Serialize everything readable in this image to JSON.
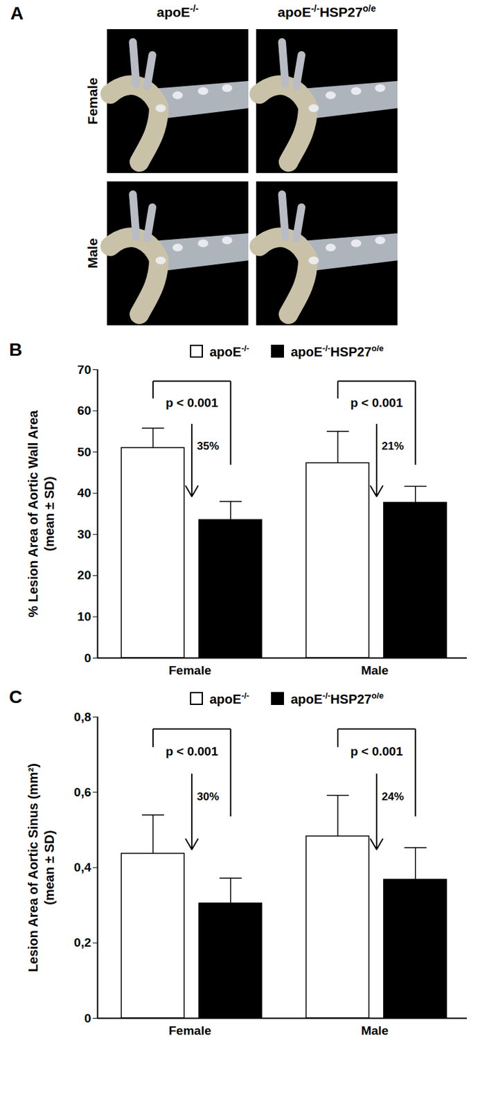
{
  "panel_a": {
    "panel": "A",
    "columns": [
      "apoE-/-",
      "apoE-/-HSP27o/e"
    ],
    "rows": [
      "Female",
      "Male"
    ]
  },
  "chart_data": [
    {
      "panel": "B",
      "type": "bar",
      "y_label": "% Lesion Area of Aortic Wall Area\n(mean ± SD)",
      "categories": [
        "Female",
        "Male"
      ],
      "series": [
        {
          "name": "apoE-/-",
          "color": "#ffffff",
          "values": [
            51.0,
            47.3
          ],
          "sd": [
            4.8,
            7.7
          ]
        },
        {
          "name": "apoE-/-HSP27o/e",
          "color": "#000000",
          "values": [
            33.5,
            37.7
          ],
          "sd": [
            4.5,
            4.0
          ]
        }
      ],
      "annotations": [
        {
          "p": "p < 0.001",
          "change": "35%"
        },
        {
          "p": "p < 0.001",
          "change": "21%"
        }
      ],
      "ylim": [
        0,
        70
      ],
      "yticks": [
        0,
        10,
        20,
        30,
        40,
        50,
        60,
        70
      ],
      "legend": "top"
    },
    {
      "panel": "C",
      "type": "bar",
      "y_label": "Lesion Area of Aortic Sinus (mm²)\n(mean ± SD)",
      "categories": [
        "Female",
        "Male"
      ],
      "series": [
        {
          "name": "apoE-/-",
          "color": "#ffffff",
          "values": [
            0.437,
            0.483
          ],
          "sd": [
            0.103,
            0.109
          ]
        },
        {
          "name": "apoE-/-HSP27o/e",
          "color": "#000000",
          "values": [
            0.305,
            0.368
          ],
          "sd": [
            0.067,
            0.085
          ]
        }
      ],
      "annotations": [
        {
          "p": "p < 0.001",
          "change": "30%"
        },
        {
          "p": "p < 0.001",
          "change": "24%"
        }
      ],
      "ylim": [
        0,
        0.8
      ],
      "yticks": [
        0,
        {
          "value": 0.2,
          "label": "0,2"
        },
        {
          "value": 0.4,
          "label": "0,4"
        },
        {
          "value": 0.6,
          "label": "0,6"
        },
        {
          "value": 0.8,
          "label": "0,8"
        }
      ],
      "legend": "top"
    }
  ]
}
